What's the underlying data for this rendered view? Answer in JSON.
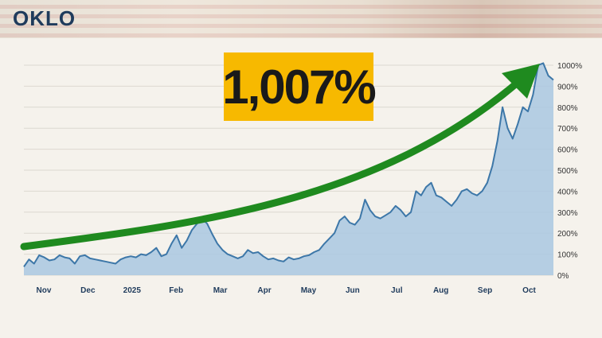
{
  "header": {
    "ticker": "OKLO"
  },
  "annotation": {
    "gain_label": "1,007%",
    "badge_color": "#f7b900",
    "arrow_color": "#1f8a1f"
  },
  "chart_data": {
    "type": "area",
    "title": "",
    "xlabel": "",
    "ylabel": "",
    "ylim": [
      0,
      1000
    ],
    "y_ticks": [
      "0%",
      "100%",
      "200%",
      "300%",
      "400%",
      "500%",
      "600%",
      "700%",
      "800%",
      "900%",
      "1000%"
    ],
    "x_ticks": [
      "Nov",
      "Dec",
      "2025",
      "Feb",
      "Mar",
      "Apr",
      "May",
      "Jun",
      "Jul",
      "Aug",
      "Sep",
      "Oct"
    ],
    "grid": true,
    "line_color": "#3d77a8",
    "fill_color": "#a9c8e2",
    "series": [
      {
        "values": [
          40,
          75,
          55,
          95,
          85,
          70,
          75,
          95,
          85,
          80,
          55,
          90,
          95,
          80,
          75,
          70,
          65,
          60,
          55,
          75,
          85,
          90,
          85,
          100,
          95,
          110,
          130,
          90,
          100,
          150,
          190,
          130,
          165,
          215,
          245,
          270,
          245,
          195,
          150,
          120,
          100,
          90,
          80,
          90,
          120,
          105,
          110,
          90,
          75,
          80,
          70,
          65,
          85,
          75,
          80,
          90,
          95,
          110,
          120,
          150,
          175,
          200,
          260,
          280,
          250,
          240,
          270,
          360,
          310,
          280,
          270,
          285,
          300,
          330,
          310,
          280,
          300,
          400,
          380,
          420,
          440,
          380,
          370,
          350,
          330,
          360,
          400,
          410,
          390,
          380,
          400,
          440,
          520,
          640,
          800,
          700,
          650,
          720,
          800,
          780,
          860,
          1000,
          1010,
          950,
          930
        ]
      }
    ]
  }
}
